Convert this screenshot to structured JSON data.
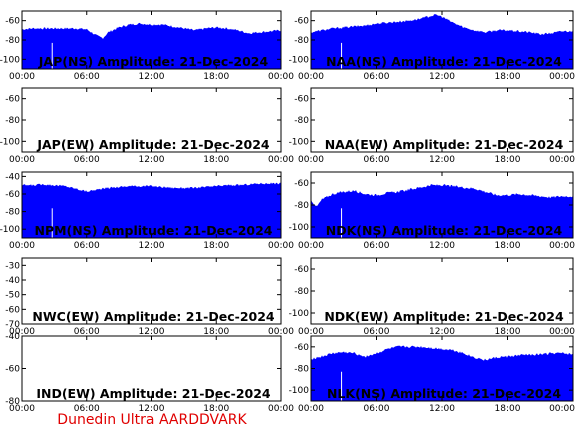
{
  "footer": {
    "credit": "Dunedin Ultra AARDDVARK"
  },
  "colors": {
    "fill": "#0000ff",
    "marker": "#ffffff",
    "credit": "#e00000"
  },
  "chart_data": [
    {
      "type": "area",
      "title": "JAP(NS) Amplitude: 21-Dec-2024",
      "xticks": [
        "00:00",
        "06:00",
        "12:00",
        "18:00",
        "00:00"
      ],
      "ylim": [
        -110,
        -50
      ],
      "yticks": [
        -60,
        -80,
        -100
      ],
      "marker_hour": 2.8,
      "series": [
        {
          "x": [
            0,
            1,
            2,
            3,
            4,
            5,
            6,
            7,
            7.5,
            8,
            9,
            10,
            11,
            12,
            13,
            14,
            15,
            16,
            17,
            18,
            19,
            20,
            21,
            22,
            23,
            24
          ],
          "y": [
            -69,
            -68,
            -68,
            -68,
            -68,
            -68,
            -69,
            -76,
            -78,
            -72,
            -67,
            -64,
            -63,
            -64,
            -64,
            -66,
            -68,
            -70,
            -68,
            -67,
            -68,
            -70,
            -73,
            -72,
            -71,
            -70
          ]
        }
      ]
    },
    {
      "type": "area",
      "title": "NAA(NS) Amplitude: 21-Dec-2024",
      "xticks": [
        "00:00",
        "06:00",
        "12:00",
        "18:00",
        "00:00"
      ],
      "ylim": [
        -110,
        -50
      ],
      "yticks": [
        -60,
        -80,
        -100
      ],
      "marker_hour": 2.8,
      "series": [
        {
          "x": [
            0,
            1,
            2,
            3,
            4,
            5,
            6,
            7,
            8,
            9,
            10,
            11,
            11.5,
            12,
            13,
            14,
            15,
            16,
            17,
            18,
            19,
            20,
            21,
            22,
            23,
            24
          ],
          "y": [
            -72,
            -70,
            -68,
            -67,
            -66,
            -65,
            -63,
            -62,
            -61,
            -60,
            -58,
            -55,
            -54,
            -56,
            -62,
            -67,
            -70,
            -72,
            -70,
            -70,
            -71,
            -72,
            -74,
            -73,
            -71,
            -71
          ]
        }
      ]
    },
    {
      "type": "area",
      "title": "JAP(EW) Amplitude: 21-Dec-2024",
      "xticks": [
        "00:00",
        "06:00",
        "12:00",
        "18:00",
        "00:00"
      ],
      "ylim": [
        -110,
        -50
      ],
      "yticks": [
        -60,
        -80,
        -100
      ],
      "series": []
    },
    {
      "type": "area",
      "title": "NAA(EW) Amplitude: 21-Dec-2024",
      "xticks": [
        "00:00",
        "06:00",
        "12:00",
        "18:00",
        "00:00"
      ],
      "ylim": [
        -110,
        -50
      ],
      "yticks": [
        -60,
        -80,
        -100
      ],
      "series": []
    },
    {
      "type": "area",
      "title": "NPM(NS) Amplitude: 21-Dec-2024",
      "xticks": [
        "00:00",
        "06:00",
        "12:00",
        "18:00",
        "00:00"
      ],
      "ylim": [
        -110,
        -35
      ],
      "yticks": [
        -40,
        -60,
        -80,
        -100
      ],
      "marker_hour": 2.8,
      "series": [
        {
          "x": [
            0,
            1,
            2,
            3,
            4,
            5,
            6,
            7,
            8,
            9,
            10,
            11,
            12,
            13,
            14,
            15,
            16,
            17,
            18,
            19,
            20,
            21,
            22,
            23,
            24
          ],
          "y": [
            -50,
            -50,
            -49,
            -50,
            -51,
            -54,
            -57,
            -55,
            -53,
            -52,
            -51,
            -51,
            -51,
            -52,
            -53,
            -53,
            -53,
            -52,
            -51,
            -50,
            -50,
            -49,
            -48,
            -48,
            -48
          ]
        }
      ]
    },
    {
      "type": "area",
      "title": "NDK(NS) Amplitude: 21-Dec-2024",
      "xticks": [
        "00:00",
        "06:00",
        "12:00",
        "18:00",
        "00:00"
      ],
      "ylim": [
        -110,
        -50
      ],
      "yticks": [
        -60,
        -80,
        -100
      ],
      "marker_hour": 2.8,
      "series": [
        {
          "x": [
            0,
            0.5,
            1,
            2,
            3,
            4,
            5,
            6,
            7,
            8,
            9,
            10,
            11,
            12,
            13,
            14,
            15,
            16,
            17,
            18,
            19,
            20,
            21,
            22,
            23,
            24
          ],
          "y": [
            -75,
            -82,
            -75,
            -70,
            -68,
            -67,
            -70,
            -71,
            -69,
            -68,
            -66,
            -64,
            -62,
            -62,
            -63,
            -64,
            -65,
            -68,
            -71,
            -71,
            -70,
            -71,
            -72,
            -73,
            -72,
            -72
          ]
        }
      ]
    },
    {
      "type": "area",
      "title": "NWC(EW) Amplitude: 21-Dec-2024",
      "xticks": [
        "00:00",
        "06:00",
        "12:00",
        "18:00",
        "00:00"
      ],
      "ylim": [
        -70,
        -25
      ],
      "yticks": [
        -30,
        -40,
        -50,
        -60,
        -70
      ],
      "series": []
    },
    {
      "type": "area",
      "title": "NDK(EW) Amplitude: 21-Dec-2024",
      "xticks": [
        "00:00",
        "06:00",
        "12:00",
        "18:00",
        "00:00"
      ],
      "ylim": [
        -110,
        -50
      ],
      "yticks": [
        -60,
        -80,
        -100
      ],
      "series": []
    },
    {
      "type": "area",
      "title": "IND(EW) Amplitude: 21-Dec-2024",
      "xticks": [
        "00:00",
        "06:00",
        "12:00",
        "18:00",
        "00:00"
      ],
      "ylim": [
        -80,
        -40
      ],
      "yticks": [
        -40,
        -60,
        -80
      ],
      "series": []
    },
    {
      "type": "area",
      "title": "NLK(NS) Amplitude: 21-Dec-2024",
      "xticks": [
        "00:00",
        "06:00",
        "12:00",
        "18:00",
        "00:00"
      ],
      "ylim": [
        -110,
        -50
      ],
      "yticks": [
        -60,
        -80,
        -100
      ],
      "marker_hour": 2.8,
      "series": [
        {
          "x": [
            0,
            1,
            2,
            3,
            4,
            5,
            6,
            7,
            8,
            9,
            10,
            11,
            12,
            13,
            14,
            15,
            16,
            17,
            18,
            19,
            20,
            21,
            22,
            23,
            24
          ],
          "y": [
            -71,
            -69,
            -66,
            -65,
            -66,
            -69,
            -66,
            -62,
            -60,
            -60,
            -60,
            -61,
            -62,
            -63,
            -66,
            -70,
            -72,
            -70,
            -69,
            -68,
            -67,
            -67,
            -66,
            -66,
            -67
          ]
        }
      ]
    }
  ]
}
